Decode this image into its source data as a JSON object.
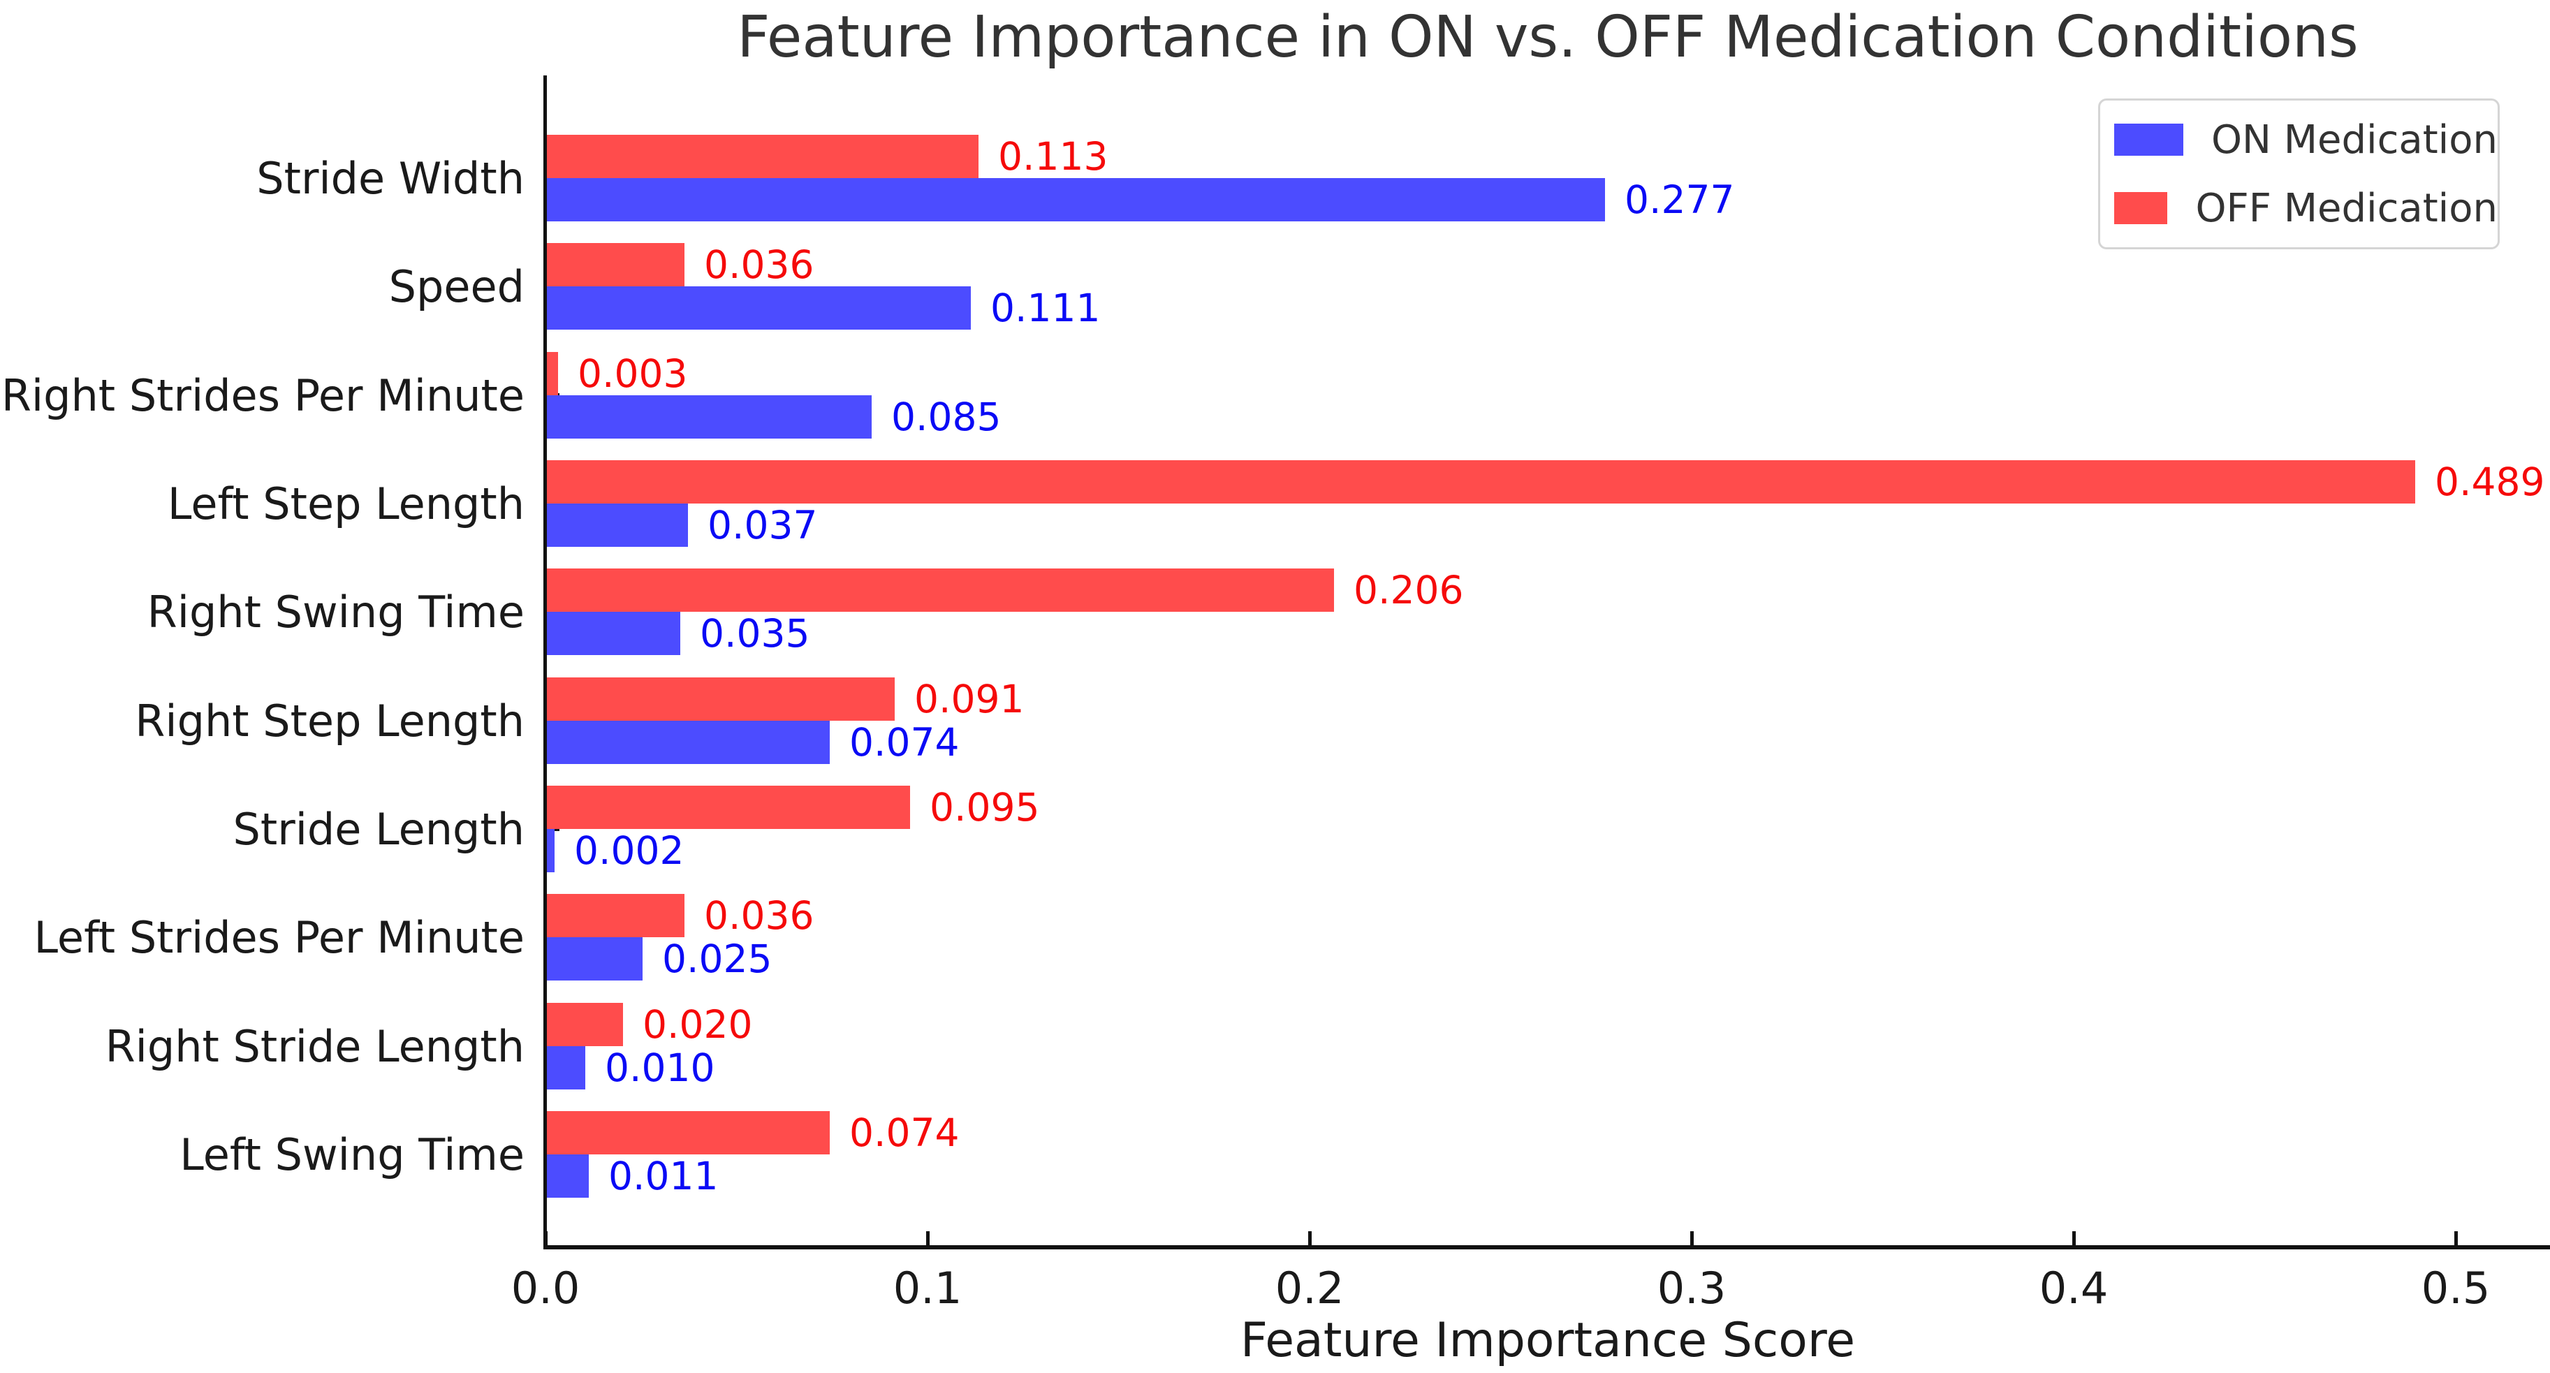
{
  "chart_data": {
    "type": "bar",
    "orientation": "horizontal",
    "title": "Feature Importance in ON vs. OFF Medication Conditions",
    "xlabel": "Feature Importance Score",
    "ylabel": "",
    "categories": [
      "Stride Width",
      "Speed",
      "Right Strides Per Minute",
      "Left Step Length",
      "Right Swing Time",
      "Right Step Length",
      "Stride Length",
      "Left Strides Per Minute",
      "Right Stride Length",
      "Left Swing Time"
    ],
    "series": [
      {
        "name": "ON Medication",
        "bar_color": "#4C4CFF",
        "label_color": "#0A0AF5",
        "group_position": "bottom",
        "values": [
          0.277,
          0.111,
          0.085,
          0.037,
          0.035,
          0.074,
          0.002,
          0.025,
          0.01,
          0.011
        ]
      },
      {
        "name": "OFF Medication",
        "bar_color": "#FF4C4C",
        "label_color": "#F50A0A",
        "group_position": "top",
        "values": [
          0.113,
          0.036,
          0.003,
          0.489,
          0.206,
          0.091,
          0.095,
          0.036,
          0.02,
          0.074
        ]
      }
    ],
    "value_label_decimals": 3,
    "xticks": [
      0.0,
      0.1,
      0.2,
      0.3,
      0.4,
      0.5
    ],
    "xtick_decimals": 1,
    "xlim": [
      0,
      0.5247
    ],
    "grid": false,
    "tick_direction": "in",
    "legend": {
      "position": "upper right"
    },
    "colors": {
      "background": "#FFFFFF",
      "axis": "#111111",
      "tick_text": "#1A1A1A",
      "category_text": "#1A1A1A",
      "title_text": "#333333",
      "xlabel_text": "#1A1A1A",
      "legend_text": "#333333",
      "legend_border": "#D5D5D5"
    }
  }
}
